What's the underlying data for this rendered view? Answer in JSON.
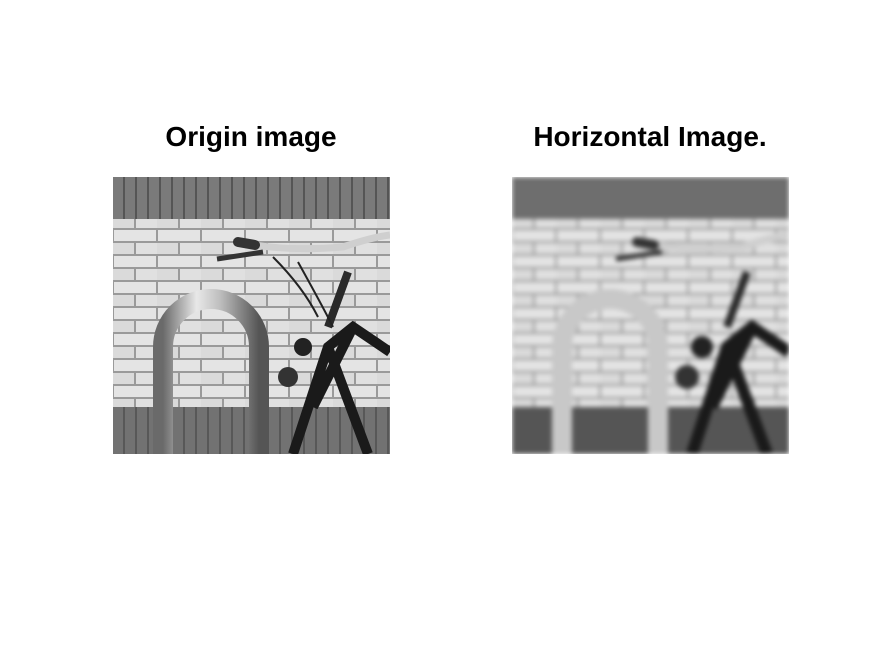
{
  "panels": [
    {
      "title": "Origin image",
      "image": "photo of a bicycle locked to a U-shaped metal rack in front of a brick wall, grayscale, sharp"
    },
    {
      "title": "Horizontal Image.",
      "image": "same photo with horizontal motion blur, grayscale"
    }
  ],
  "colors": {
    "background": "#ffffff",
    "text": "#000000"
  }
}
